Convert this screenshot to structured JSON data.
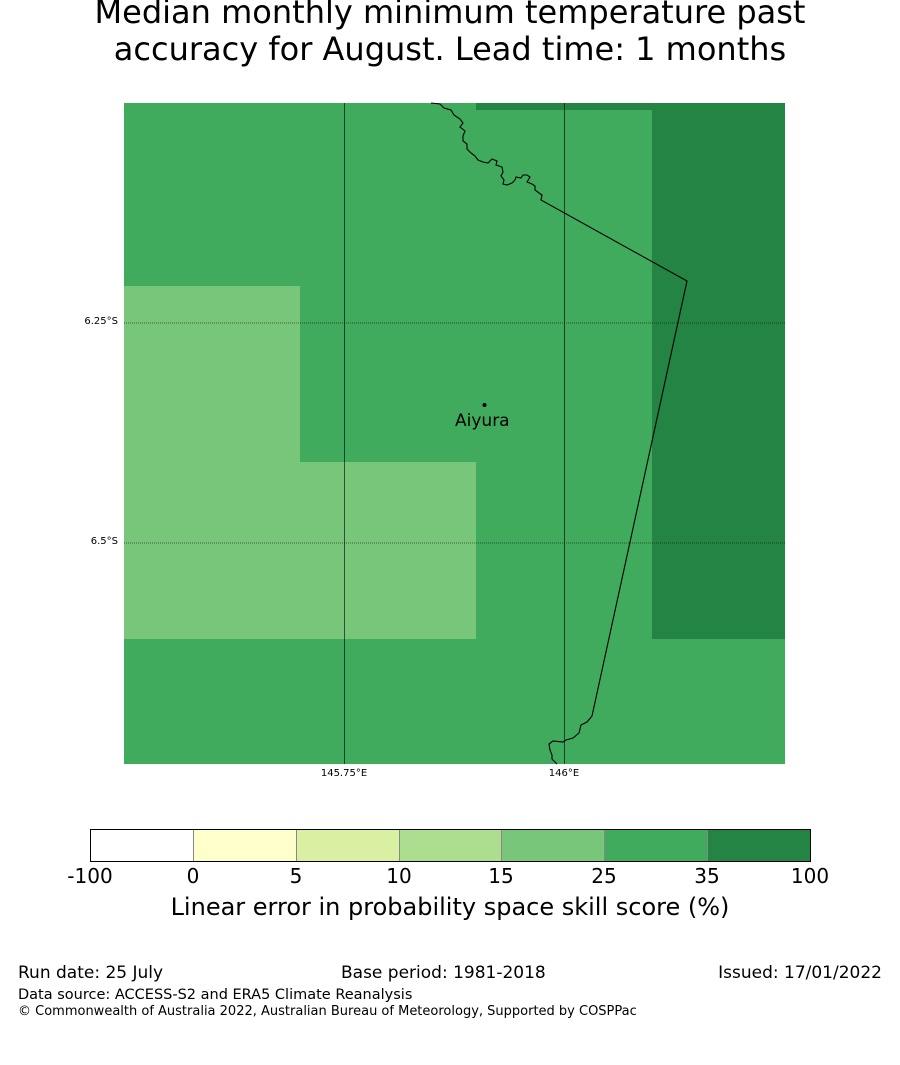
{
  "title_lines": [
    "Median monthly minimum temperature past",
    "accuracy for August. Lead time: 1 months"
  ],
  "map": {
    "lat_labels": [
      "6.25°S",
      "6.5°S"
    ],
    "lon_labels": [
      "145.75°E",
      "146°E"
    ],
    "place": {
      "name": "Aiyura"
    },
    "colors": {
      "15_25": "#78c679",
      "25_35": "#41ab5d",
      "35_100": "#238443",
      "coastline": "#000000"
    }
  },
  "colorbar": {
    "ticks": [
      "-100",
      "0",
      "5",
      "10",
      "15",
      "25",
      "35",
      "100"
    ],
    "colors": [
      "#ffffff",
      "#ffffcc",
      "#d9f0a3",
      "#addd8e",
      "#78c679",
      "#41ab5d",
      "#238443"
    ],
    "label": "Linear error in probability space skill score (%)"
  },
  "footer": {
    "run_date": "Run date: 25 July",
    "base_period": "Base period: 1981-2018",
    "issued": "Issued: 17/01/2022",
    "data_source": "Data source: ACCESS-S2 and ERA5 Climate Reanalysis",
    "copyright": "© Commonwealth of Australia 2022, Australian Bureau of Meteorology, Supported by COSPPac"
  }
}
